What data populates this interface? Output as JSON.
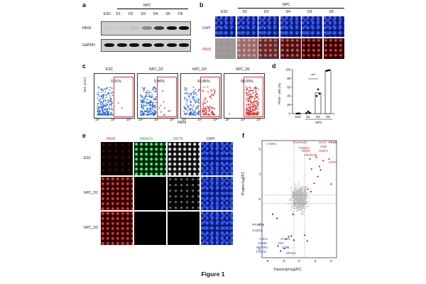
{
  "figure_caption": "Figure 1",
  "panels": {
    "a": {
      "letter": "a",
      "group": "NPC",
      "lanes": [
        "ESC",
        "D1",
        "D2",
        "D3",
        "D4",
        "D5",
        "D6"
      ],
      "rows": [
        "PAX6",
        "GAPDH"
      ],
      "pax6_intensity": [
        0.0,
        0.0,
        0.05,
        0.35,
        0.75,
        0.95,
        1.0
      ]
    },
    "b": {
      "letter": "b",
      "group": "NPC",
      "columns": [
        "ESC",
        "D2",
        "D3",
        "D4",
        "D5",
        "D6"
      ],
      "rows": [
        "DAPI",
        "PAX6"
      ]
    },
    "c": {
      "letter": "c",
      "plots": [
        {
          "title": "ESC",
          "pct": "0.31%"
        },
        {
          "title": "NPC_D2",
          "pct": "5.46%"
        },
        {
          "title": "NPC_D3",
          "pct": "43.86%"
        },
        {
          "title": "NPC_D6",
          "pct": "98.05%"
        }
      ],
      "ylabel": "SSC (x10⁵)",
      "xlabel": "PAX6",
      "xticks": [
        "10²",
        "10⁴",
        "10⁶"
      ]
    },
    "d": {
      "letter": "d",
      "ylabel": "PAX6⁺ cells (%)",
      "significance": "***",
      "group": "NPC",
      "yticks": [
        "0",
        "20",
        "40",
        "60",
        "80",
        "100"
      ]
    },
    "e": {
      "letter": "e",
      "columns": [
        "PAX6",
        "NANOG",
        "OCT4",
        "DAPI"
      ],
      "rows": [
        "ESC",
        "NPC_D2",
        "NPC_D3"
      ]
    },
    "f": {
      "letter": "f",
      "xlabel": "Transcript log2FC",
      "ylabel": "Protein log2FC",
      "xticks": [
        "-6",
        "-3",
        "0",
        "3",
        "6"
      ],
      "yticks": [
        "6",
        "3",
        "0",
        "-3",
        "-6"
      ],
      "up_genes": [
        "CAMK1",
        "PLEXHA2",
        "DLK1",
        "PAX6",
        "VWF",
        "PHOD5",
        "ROR2",
        "VEZF1",
        "PIK3C2B",
        "LRP2"
      ],
      "down_genes": [
        "PPP1R1B",
        "CUZD1",
        "CDH3",
        "ACTA1",
        "CNMD",
        "VGF",
        "COBL",
        "RIPOR2",
        "FOXO1",
        "EPHA1"
      ]
    }
  },
  "chart_data": [
    {
      "type": "bar",
      "panel": "d",
      "categories": [
        "ESC",
        "D2",
        "D3",
        "D6"
      ],
      "values": [
        0.4,
        2,
        47,
        98
      ],
      "points": [
        [
          0,
          0.5,
          0.2
        ],
        [
          1,
          5,
          2
        ],
        [
          40,
          55,
          45
        ],
        [
          97,
          98,
          99
        ]
      ],
      "ylim": [
        0,
        100
      ]
    }
  ]
}
